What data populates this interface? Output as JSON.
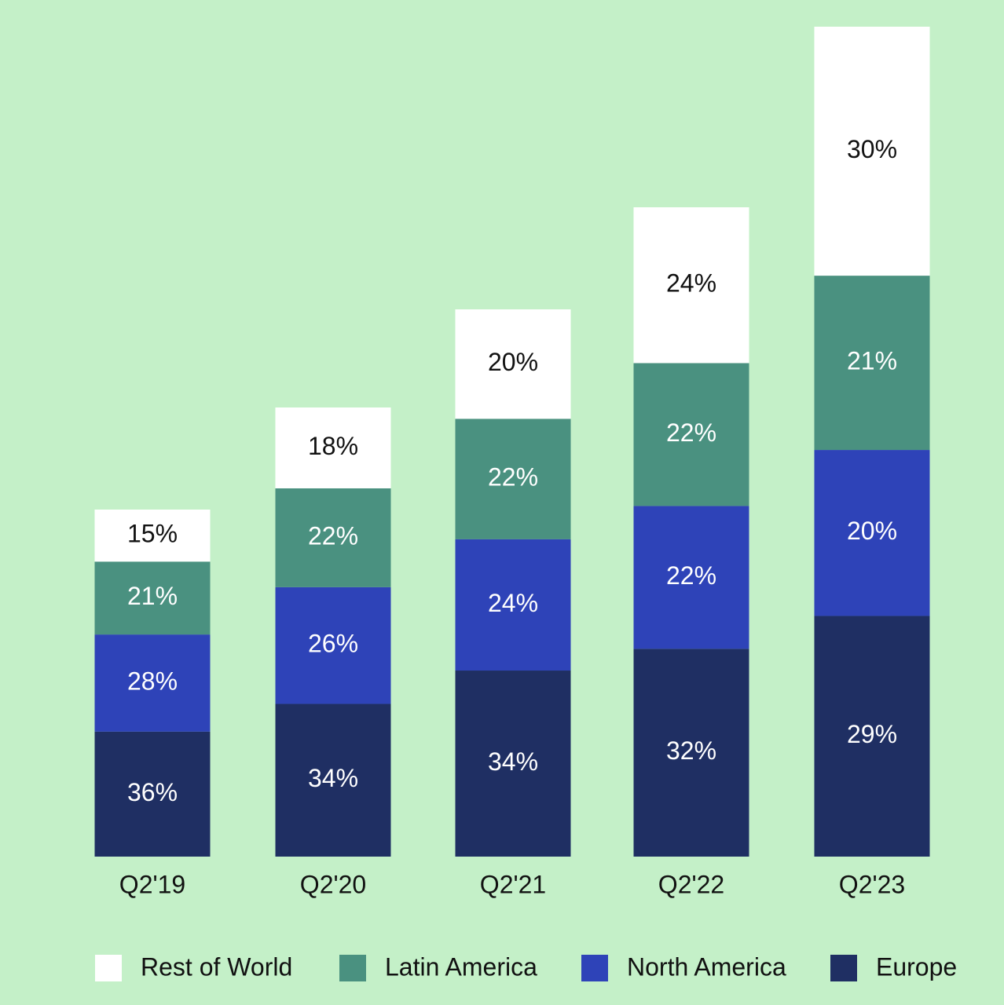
{
  "chart_data": {
    "type": "bar",
    "stacked": true,
    "categories": [
      "Q2'19",
      "Q2'20",
      "Q2'21",
      "Q2'22",
      "Q2'23"
    ],
    "series": [
      {
        "name": "Rest of World",
        "color": "#ffffff",
        "values": [
          15,
          18,
          20,
          24,
          30
        ],
        "value_labels": [
          "15%",
          "18%",
          "20%",
          "24%",
          "30%"
        ]
      },
      {
        "name": "Latin America",
        "color": "#4a9180",
        "values": [
          21,
          22,
          22,
          22,
          21
        ],
        "value_labels": [
          "21%",
          "22%",
          "22%",
          "22%",
          "21%"
        ]
      },
      {
        "name": "North America",
        "color": "#2e43b8",
        "values": [
          28,
          26,
          24,
          22,
          20
        ],
        "value_labels": [
          "28%",
          "26%",
          "24%",
          "22%",
          "20%"
        ]
      },
      {
        "name": "Europe",
        "color": "#1f2f63",
        "values": [
          36,
          34,
          34,
          32,
          29
        ],
        "value_labels": [
          "36%",
          "34%",
          "34%",
          "32%",
          "29%"
        ]
      }
    ]
  }
}
